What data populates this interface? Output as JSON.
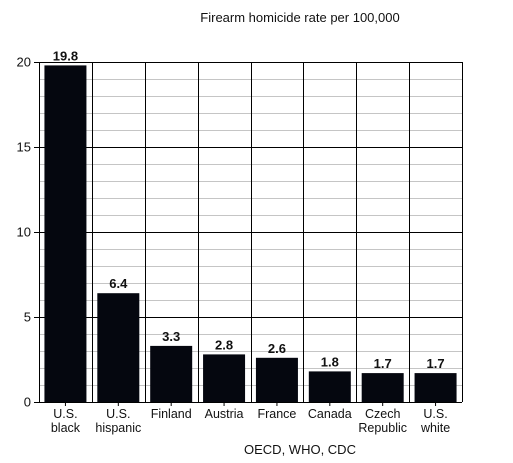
{
  "chart_data": {
    "type": "bar",
    "title": "Firearm homicide rate per 100,000",
    "footnote": "OECD, WHO, CDC",
    "categories": [
      [
        "U.S.",
        "black"
      ],
      [
        "U.S.",
        "hispanic"
      ],
      [
        "Finland"
      ],
      [
        "Austria"
      ],
      [
        "France"
      ],
      [
        "Canada"
      ],
      [
        "Czech",
        "Republic"
      ],
      [
        "U.S.",
        "white"
      ]
    ],
    "values": [
      19.8,
      6.4,
      3.3,
      2.8,
      2.6,
      1.8,
      1.7,
      1.7
    ],
    "value_labels": [
      "19.8",
      "6.4",
      "3.3",
      "2.8",
      "2.6",
      "1.8",
      "1.7",
      "1.7"
    ],
    "ylim": [
      0,
      20
    ],
    "yticks": [
      0,
      5,
      10,
      15,
      20
    ],
    "grid_minor_step": 1,
    "grid": true,
    "bar_color": "#05070f",
    "grid_color": "#000000"
  }
}
